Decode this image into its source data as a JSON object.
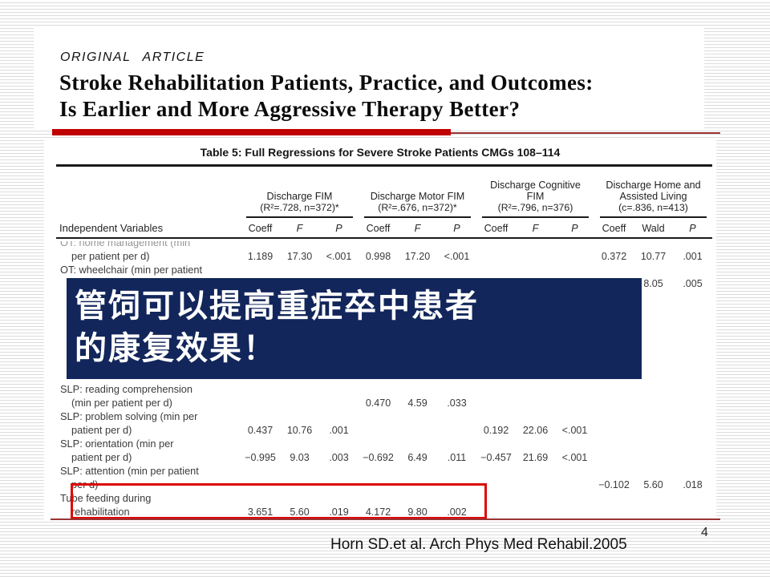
{
  "slide": {
    "page_number": "4",
    "citation": "Horn SD.et al. Arch Phys Med Rehabil.2005"
  },
  "article": {
    "eyebrow": "ORIGINAL ARTICLE",
    "title_line1": "Stroke Rehabilitation Patients, Practice, and Outcomes:",
    "title_line2": "Is Earlier and More Aggressive Therapy Better?"
  },
  "callout": {
    "line1": "管饲可以提高重症卒中患者",
    "line2": "的康复效果！"
  },
  "table": {
    "title": "Table 5: Full Regressions for Severe Stroke Patients CMGs 108–114",
    "row_header": "Independent Variables",
    "groups": [
      {
        "name": "Discharge FIM",
        "stat": "(R²=.728, n=372)*",
        "cols": [
          "Coeff",
          "F",
          "P"
        ]
      },
      {
        "name": "Discharge Motor FIM",
        "stat": "(R²=.676, n=372)*",
        "cols": [
          "Coeff",
          "F",
          "P"
        ]
      },
      {
        "name": "Discharge Cognitive FIM",
        "stat": "(R²=.796, n=376)",
        "cols": [
          "Coeff",
          "F",
          "P"
        ]
      },
      {
        "name": "Discharge Home and Assisted Living",
        "stat": "(c=.836, n=413)",
        "cols": [
          "Coeff",
          "Wald",
          "P"
        ]
      }
    ],
    "lines": [
      {
        "label": "OT: home management (min",
        "clipped": true,
        "values": [
          "",
          "",
          "",
          "",
          "",
          "",
          "",
          "",
          "",
          "",
          "",
          ""
        ]
      },
      {
        "label": "per patient per d)",
        "indent": true,
        "values": [
          "1.189",
          "17.30",
          "<.001",
          "0.998",
          "17.20",
          "<.001",
          "",
          "",
          "",
          "0.372",
          "10.77",
          ".001"
        ]
      },
      {
        "label": "OT: wheelchair (min per patient",
        "values": [
          "",
          "",
          "",
          "",
          "",
          "",
          "",
          "",
          "",
          "",
          "",
          ""
        ]
      },
      {
        "label": "",
        "indent": true,
        "values": [
          "",
          "",
          "",
          "",
          "",
          "",
          "",
          "",
          "",
          "",
          "8.05",
          ".005"
        ]
      },
      {
        "label": "SLP: reading comprehension",
        "values": [
          "",
          "",
          "",
          "",
          "",
          "",
          "",
          "",
          "",
          "",
          "",
          ""
        ]
      },
      {
        "label": "(min per patient per d)",
        "indent": true,
        "values": [
          "",
          "",
          "",
          "0.470",
          "4.59",
          ".033",
          "",
          "",
          "",
          "",
          "",
          ""
        ]
      },
      {
        "label": "SLP: problem solving (min per",
        "values": [
          "",
          "",
          "",
          "",
          "",
          "",
          "",
          "",
          "",
          "",
          "",
          ""
        ]
      },
      {
        "label": "patient per d)",
        "indent": true,
        "values": [
          "0.437",
          "10.76",
          ".001",
          "",
          "",
          "",
          "0.192",
          "22.06",
          "<.001",
          "",
          "",
          ""
        ]
      },
      {
        "label": "SLP: orientation (min per",
        "values": [
          "",
          "",
          "",
          "",
          "",
          "",
          "",
          "",
          "",
          "",
          "",
          ""
        ]
      },
      {
        "label": "patient per d)",
        "indent": true,
        "values": [
          "−0.995",
          "9.03",
          ".003",
          "−0.692",
          "6.49",
          ".011",
          "−0.457",
          "21.69",
          "<.001",
          "",
          "",
          ""
        ]
      },
      {
        "label": "SLP: attention (min per patient",
        "values": [
          "",
          "",
          "",
          "",
          "",
          "",
          "",
          "",
          "",
          "",
          "",
          ""
        ]
      },
      {
        "label": "per d)",
        "indent": true,
        "values": [
          "",
          "",
          "",
          "",
          "",
          "",
          "",
          "",
          "",
          "−0.102",
          "5.60",
          ".018"
        ]
      },
      {
        "label": "Tube feeding during",
        "values": [
          "",
          "",
          "",
          "",
          "",
          "",
          "",
          "",
          "",
          "",
          "",
          ""
        ]
      },
      {
        "label": "rehabilitation",
        "indent": true,
        "values": [
          "3.651",
          "5.60",
          ".019",
          "4.172",
          "9.80",
          ".002",
          "",
          "",
          "",
          "",
          "",
          ""
        ]
      }
    ]
  },
  "colors": {
    "accent_red": "#c00000",
    "highlight_red": "#dd0806",
    "navy": "#12265b",
    "dark_red_line": "#993333",
    "stripe_gray": "#dcdcdc"
  }
}
